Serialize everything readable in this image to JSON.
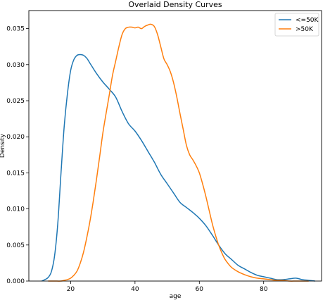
{
  "chart_data": {
    "type": "line",
    "title": "Overlaid Density Curves",
    "xlabel": "age",
    "ylabel": "Density",
    "xlim": [
      7,
      98
    ],
    "ylim": [
      0,
      0.0375
    ],
    "xticks": [
      20,
      40,
      60,
      80
    ],
    "yticks": [
      0.0,
      0.005,
      0.01,
      0.015,
      0.02,
      0.025,
      0.03,
      0.035
    ],
    "ytick_labels": [
      "0.000",
      "0.005",
      "0.010",
      "0.015",
      "0.020",
      "0.025",
      "0.030",
      "0.035"
    ],
    "grid": false,
    "legend_position": "top-right",
    "series": [
      {
        "name": "<=50K",
        "color": "#1f77b4",
        "x": [
          11,
          12,
          13,
          14,
          15,
          16,
          17,
          18,
          19,
          20,
          21,
          22,
          23,
          24,
          25,
          26,
          28,
          30,
          32,
          34,
          36,
          38,
          40,
          42,
          44,
          46,
          48,
          50,
          52,
          54,
          56,
          58,
          60,
          62,
          64,
          66,
          68,
          70,
          72,
          74,
          76,
          78,
          80,
          82,
          84,
          86,
          88,
          90,
          92,
          94,
          96
        ],
        "y": [
          0.0,
          0.0002,
          0.0005,
          0.0013,
          0.0035,
          0.008,
          0.015,
          0.0215,
          0.026,
          0.0292,
          0.0307,
          0.0313,
          0.0314,
          0.0313,
          0.0309,
          0.0302,
          0.0288,
          0.0276,
          0.0266,
          0.0255,
          0.0235,
          0.0218,
          0.0208,
          0.0195,
          0.018,
          0.0165,
          0.0148,
          0.0135,
          0.0122,
          0.0109,
          0.0102,
          0.0095,
          0.0087,
          0.0077,
          0.0064,
          0.005,
          0.0038,
          0.003,
          0.0022,
          0.0017,
          0.0012,
          0.0008,
          0.0006,
          0.0004,
          0.0002,
          0.0002,
          0.0003,
          0.0004,
          0.0002,
          0.0001,
          0.0
        ]
      },
      {
        "name": ">50K",
        "color": "#ff7f0e",
        "x": [
          13,
          15,
          17,
          18,
          19,
          20,
          21,
          22,
          23,
          24,
          25,
          26,
          27,
          28,
          29,
          30,
          31,
          32,
          33,
          34,
          35,
          36,
          37,
          38,
          39,
          40,
          41,
          42,
          43,
          44,
          45,
          46,
          47,
          48,
          49,
          50,
          51,
          52,
          53,
          54,
          55,
          56,
          57,
          58,
          59,
          60,
          61,
          62,
          63,
          64,
          65,
          66,
          67,
          68,
          69,
          70,
          72,
          74,
          76,
          78,
          80,
          82,
          84,
          86,
          88,
          90,
          92,
          94
        ],
        "y": [
          0.0,
          0.0,
          0.0,
          0.0001,
          0.0002,
          0.0004,
          0.0008,
          0.0014,
          0.0025,
          0.004,
          0.006,
          0.0083,
          0.011,
          0.014,
          0.0172,
          0.0205,
          0.0232,
          0.0258,
          0.0285,
          0.0305,
          0.0325,
          0.0342,
          0.035,
          0.0352,
          0.0352,
          0.0351,
          0.0352,
          0.035,
          0.0353,
          0.0355,
          0.0356,
          0.0353,
          0.0342,
          0.0325,
          0.0308,
          0.03,
          0.029,
          0.0275,
          0.0255,
          0.0232,
          0.021,
          0.0188,
          0.0175,
          0.0168,
          0.016,
          0.015,
          0.0135,
          0.0118,
          0.0099,
          0.008,
          0.0064,
          0.005,
          0.0039,
          0.003,
          0.0024,
          0.0019,
          0.0013,
          0.0009,
          0.0006,
          0.0004,
          0.0003,
          0.0002,
          0.0001,
          0.0001,
          0.0,
          0.0,
          0.0,
          0.0
        ]
      }
    ]
  }
}
